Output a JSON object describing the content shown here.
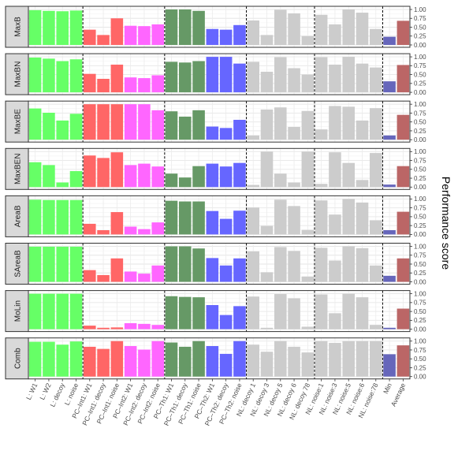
{
  "chart_data": {
    "type": "bar",
    "ylabel": "Performance score",
    "ylim": [
      0,
      1
    ],
    "yticks": [
      "0.00",
      "0.25",
      "0.50",
      "0.75",
      "1.00"
    ],
    "categories": [
      "L: W1",
      "L: W2",
      "L: decoy",
      "L: noise",
      "PC–Int1: W1",
      "PC–Int1: decoy",
      "PC–Int1: noise",
      "PC–Int2: W1",
      "PC–Int2: decoy",
      "PC–Int2: noise",
      "PC–Th1: W1",
      "PC–Th1: decoy",
      "PC–Th1: noise",
      "PC–Th2: W1",
      "PC–Th2: decoy",
      "PC–Th2: noise",
      "NL: decoy 1",
      "NL: decoy 3",
      "NL: decoy 5",
      "NL: decoy 6",
      "NL: decoy 78",
      "NL: noise:1",
      "NL: noise:3",
      "NL: noise:5",
      "NL: noise:6",
      "NL: noise:78",
      "Min",
      "Average"
    ],
    "category_colors": [
      "#66ff66",
      "#66ff66",
      "#66ff66",
      "#66ff66",
      "#ff6666",
      "#ff6666",
      "#ff6666",
      "#ff66ff",
      "#ff66ff",
      "#ff66ff",
      "#669966",
      "#669966",
      "#669966",
      "#6666ff",
      "#6666ff",
      "#6666ff",
      "#cccccc",
      "#cccccc",
      "#cccccc",
      "#cccccc",
      "#cccccc",
      "#cccccc",
      "#cccccc",
      "#cccccc",
      "#cccccc",
      "#cccccc",
      "#6666bb",
      "#bb6666"
    ],
    "group_separators_after": [
      3,
      9,
      15,
      20,
      25
    ],
    "grid": true,
    "panels": [
      {
        "name": "MaxB",
        "values": [
          0.98,
          0.96,
          0.95,
          0.97,
          0.43,
          0.28,
          0.75,
          0.54,
          0.53,
          0.58,
          1.0,
          1.0,
          0.96,
          0.45,
          0.43,
          0.56,
          0.69,
          0.28,
          0.99,
          0.89,
          0.25,
          0.85,
          0.58,
          1.0,
          0.91,
          0.45,
          0.23,
          0.68
        ]
      },
      {
        "name": "MaxBN",
        "values": [
          0.98,
          0.95,
          0.88,
          0.93,
          0.52,
          0.38,
          0.78,
          0.42,
          0.4,
          0.48,
          0.86,
          0.84,
          0.88,
          1.0,
          1.0,
          0.81,
          0.86,
          0.58,
          0.99,
          0.68,
          0.5,
          0.99,
          0.78,
          1.0,
          0.81,
          0.7,
          0.31,
          0.77
        ]
      },
      {
        "name": "MaxBE",
        "values": [
          0.88,
          0.76,
          0.54,
          0.73,
          1.0,
          1.0,
          1.0,
          1.0,
          1.0,
          0.83,
          0.8,
          0.65,
          0.83,
          0.37,
          0.33,
          0.56,
          0.12,
          0.85,
          0.91,
          0.36,
          0.81,
          0.29,
          0.95,
          0.93,
          0.54,
          0.89,
          0.12,
          0.7
        ]
      },
      {
        "name": "MaxBEN",
        "values": [
          0.7,
          0.62,
          0.13,
          0.45,
          0.89,
          0.82,
          0.98,
          0.62,
          0.66,
          0.58,
          0.38,
          0.27,
          0.59,
          0.66,
          0.58,
          0.68,
          0.06,
          1.0,
          0.38,
          0.13,
          1.0,
          0.09,
          0.98,
          0.68,
          0.2,
          0.96,
          0.07,
          0.59
        ]
      },
      {
        "name": "AreaB",
        "values": [
          0.98,
          0.97,
          0.97,
          0.97,
          0.3,
          0.12,
          0.63,
          0.22,
          0.15,
          0.34,
          0.95,
          0.93,
          0.93,
          0.66,
          0.44,
          0.67,
          0.76,
          0.24,
          0.98,
          0.8,
          0.13,
          0.96,
          0.56,
          1.0,
          0.9,
          0.4,
          0.12,
          0.64
        ]
      },
      {
        "name": "SAreaB",
        "values": [
          0.99,
          0.99,
          0.99,
          0.99,
          0.33,
          0.19,
          0.66,
          0.29,
          0.23,
          0.46,
          1.0,
          1.0,
          0.94,
          0.67,
          0.46,
          0.66,
          0.86,
          0.27,
          0.98,
          0.87,
          0.15,
          0.96,
          0.6,
          1.0,
          0.95,
          0.46,
          0.17,
          0.66
        ]
      },
      {
        "name": "MoLin",
        "values": [
          1.0,
          1.0,
          1.0,
          1.0,
          0.1,
          0.04,
          0.05,
          0.17,
          0.15,
          0.12,
          0.93,
          0.91,
          0.9,
          0.68,
          0.4,
          0.65,
          0.92,
          0.04,
          0.99,
          0.87,
          0.07,
          0.98,
          0.45,
          1.0,
          0.9,
          0.12,
          0.04,
          0.58
        ]
      },
      {
        "name": "Comb",
        "values": [
          0.98,
          0.98,
          0.9,
          0.99,
          0.84,
          0.78,
          1.0,
          0.86,
          0.76,
          1.0,
          0.96,
          0.84,
          1.0,
          0.86,
          0.64,
          1.0,
          0.9,
          0.7,
          1.0,
          0.84,
          0.68,
          1.0,
          0.95,
          1.0,
          1.0,
          1.0,
          0.63,
          0.88
        ]
      }
    ]
  }
}
